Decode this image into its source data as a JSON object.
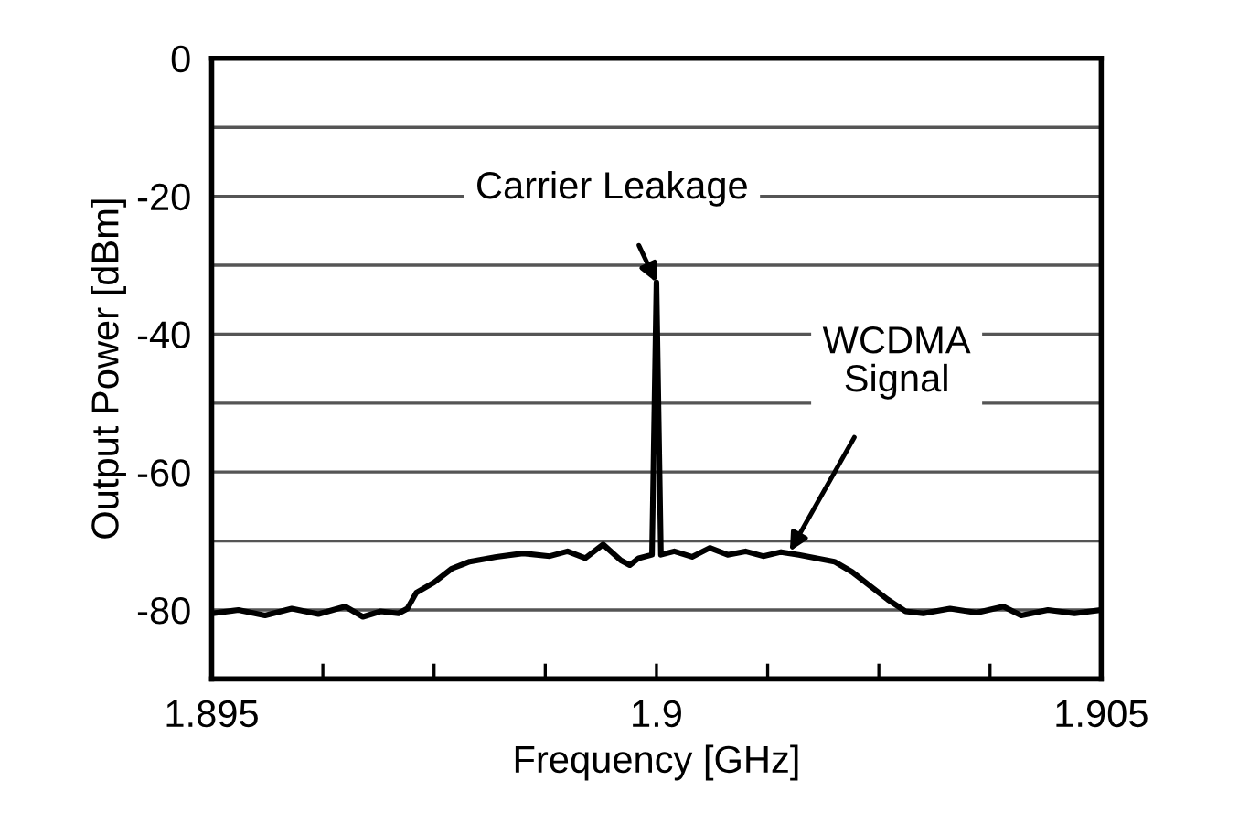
{
  "chart_data": {
    "type": "line",
    "xlabel": "Frequency [GHz]",
    "ylabel": "Output Power [dBm]",
    "xlim": [
      1.895,
      1.905
    ],
    "xticks": [
      1.895,
      {
        "value": 1.89625,
        "label": null
      },
      {
        "value": 1.8975,
        "label": null
      },
      {
        "value": 1.89875,
        "label": null
      },
      1.9,
      {
        "value": 1.90125,
        "label": null
      },
      {
        "value": 1.9025,
        "label": null
      },
      {
        "value": 1.90375,
        "label": null
      },
      1.905
    ],
    "ylim": [
      -90,
      0
    ],
    "yticks": [
      {
        "value": -80,
        "label": "-80"
      },
      {
        "value": -70,
        "label": null
      },
      {
        "value": -60,
        "label": "-60"
      },
      {
        "value": -50,
        "label": null
      },
      {
        "value": -40,
        "label": "-40"
      },
      {
        "value": -30,
        "label": null
      },
      {
        "value": -20,
        "label": "-20"
      },
      {
        "value": -10,
        "label": null
      },
      0
    ],
    "grid": "y",
    "legend": false,
    "line_style": "solid",
    "marker": "none",
    "series": [
      {
        "color": "#000000",
        "x": [
          1.895,
          1.8953,
          1.8956,
          1.8959,
          1.8962,
          1.8965,
          1.8967,
          1.8969,
          1.8971,
          1.8972,
          1.8973,
          1.8975,
          1.8977,
          1.8979,
          1.8982,
          1.8985,
          1.8988,
          1.899,
          1.8992,
          1.8994,
          1.8996,
          1.8997,
          1.8998,
          1.89995,
          1.9,
          1.90005,
          1.9002,
          1.9004,
          1.9006,
          1.9008,
          1.901,
          1.9012,
          1.9014,
          1.9016,
          1.9018,
          1.902,
          1.9022,
          1.9024,
          1.9026,
          1.9028,
          1.903,
          1.9033,
          1.9036,
          1.9039,
          1.9041,
          1.9044,
          1.9047,
          1.905
        ],
        "values": [
          -80.5,
          -80,
          -80.8,
          -79.8,
          -80.6,
          -79.5,
          -81,
          -80.2,
          -80.5,
          -79.8,
          -77.5,
          -76,
          -74,
          -73,
          -72.3,
          -71.8,
          -72.2,
          -71.5,
          -72.5,
          -70.5,
          -72.8,
          -73.5,
          -72.5,
          -72,
          -32.5,
          -72,
          -71.5,
          -72.3,
          -71,
          -72,
          -71.5,
          -72.2,
          -71.6,
          -72,
          -72.5,
          -73,
          -74.5,
          -76.5,
          -78.5,
          -80.2,
          -80.5,
          -79.8,
          -80.4,
          -79.5,
          -80.8,
          -80,
          -80.5,
          -80
        ]
      }
    ],
    "annotations": [
      {
        "text": "Carrier Leakage",
        "x": 1.9,
        "y": -32.5
      },
      {
        "text": "WCDMA\nSignal",
        "x": 1.9015,
        "y": -71.5
      }
    ]
  }
}
